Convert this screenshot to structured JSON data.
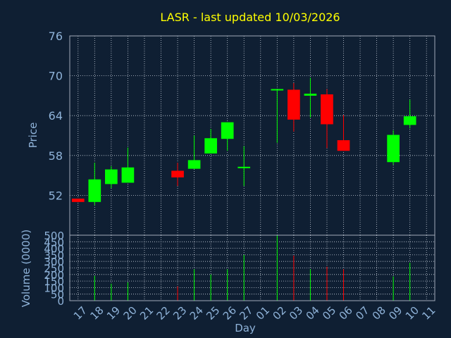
{
  "chart_data": [
    {
      "type": "candlestick",
      "title": "LASR - last updated 10/03/2026",
      "ylabel": "Price",
      "ylim": [
        46,
        76
      ],
      "yticks": [
        52,
        58,
        64,
        70,
        76
      ],
      "grid": true,
      "categories": [
        "17",
        "18",
        "19",
        "20",
        "21",
        "22",
        "23",
        "24",
        "25",
        "26",
        "27",
        "01",
        "02",
        "03",
        "04",
        "05",
        "06",
        "07",
        "08",
        "09",
        "10",
        "11"
      ],
      "candles": [
        {
          "day": "17",
          "open": 51.5,
          "high": 51.5,
          "low": 51.0,
          "close": 51.0
        },
        {
          "day": "18",
          "open": 51.0,
          "high": 56.9,
          "low": 50.5,
          "close": 54.4
        },
        {
          "day": "19",
          "open": 53.7,
          "high": 56.4,
          "low": 53.1,
          "close": 55.9
        },
        {
          "day": "20",
          "open": 53.9,
          "high": 59.2,
          "low": 53.9,
          "close": 56.2
        },
        {
          "day": "23",
          "open": 55.7,
          "high": 56.9,
          "low": 53.4,
          "close": 54.7
        },
        {
          "day": "24",
          "open": 56.0,
          "high": 61.0,
          "low": 56.0,
          "close": 57.3
        },
        {
          "day": "25",
          "open": 58.3,
          "high": 62.0,
          "low": 58.3,
          "close": 60.6
        },
        {
          "day": "26",
          "open": 60.5,
          "high": 63.0,
          "low": 58.7,
          "close": 63.0
        },
        {
          "day": "27",
          "open": 56.2,
          "high": 59.4,
          "low": 53.4,
          "close": 56.3
        },
        {
          "day": "02",
          "open": 67.8,
          "high": 67.8,
          "low": 59.9,
          "close": 68.0
        },
        {
          "day": "03",
          "open": 67.9,
          "high": 68.9,
          "low": 61.6,
          "close": 63.4
        },
        {
          "day": "04",
          "open": 67.0,
          "high": 69.7,
          "low": 63.7,
          "close": 67.3
        },
        {
          "day": "05",
          "open": 67.2,
          "high": 68.0,
          "low": 59.1,
          "close": 62.7
        },
        {
          "day": "06",
          "open": 60.3,
          "high": 64.1,
          "low": 58.7,
          "close": 58.7
        },
        {
          "day": "09",
          "open": 57.0,
          "high": 61.8,
          "low": 56.6,
          "close": 61.1
        },
        {
          "day": "10",
          "open": 62.6,
          "high": 66.4,
          "low": 62.1,
          "close": 63.9
        }
      ],
      "colors": {
        "up": "#00ff00",
        "down": "#ff0000"
      }
    },
    {
      "type": "bar",
      "ylabel": "Volume (0000)",
      "xlabel": "Day",
      "ylim": [
        0,
        500
      ],
      "yticks": [
        0,
        50,
        100,
        150,
        200,
        250,
        300,
        350,
        400,
        450,
        500
      ],
      "grid": true,
      "volumes": [
        {
          "day": "18",
          "value": 190,
          "color": "#00ff00"
        },
        {
          "day": "19",
          "value": 130,
          "color": "#00ff00"
        },
        {
          "day": "20",
          "value": 140,
          "color": "#00ff00"
        },
        {
          "day": "23",
          "value": 110,
          "color": "#ff0000"
        },
        {
          "day": "24",
          "value": 240,
          "color": "#00ff00"
        },
        {
          "day": "25",
          "value": 200,
          "color": "#00ff00"
        },
        {
          "day": "26",
          "value": 240,
          "color": "#00ff00"
        },
        {
          "day": "27",
          "value": 350,
          "color": "#00ff00"
        },
        {
          "day": "02",
          "value": 500,
          "color": "#00ff00"
        },
        {
          "day": "03",
          "value": 345,
          "color": "#ff0000"
        },
        {
          "day": "04",
          "value": 240,
          "color": "#00ff00"
        },
        {
          "day": "05",
          "value": 260,
          "color": "#ff0000"
        },
        {
          "day": "06",
          "value": 240,
          "color": "#ff0000"
        },
        {
          "day": "09",
          "value": 185,
          "color": "#00ff00"
        },
        {
          "day": "10",
          "value": 290,
          "color": "#00ff00"
        }
      ]
    }
  ],
  "style": {
    "background": "#0f1f33",
    "title_color": "#ffff00",
    "axis_text_color": "#8fb3d9",
    "grid_color": "#c8d0dc",
    "frame_color": "#a0aab8"
  }
}
